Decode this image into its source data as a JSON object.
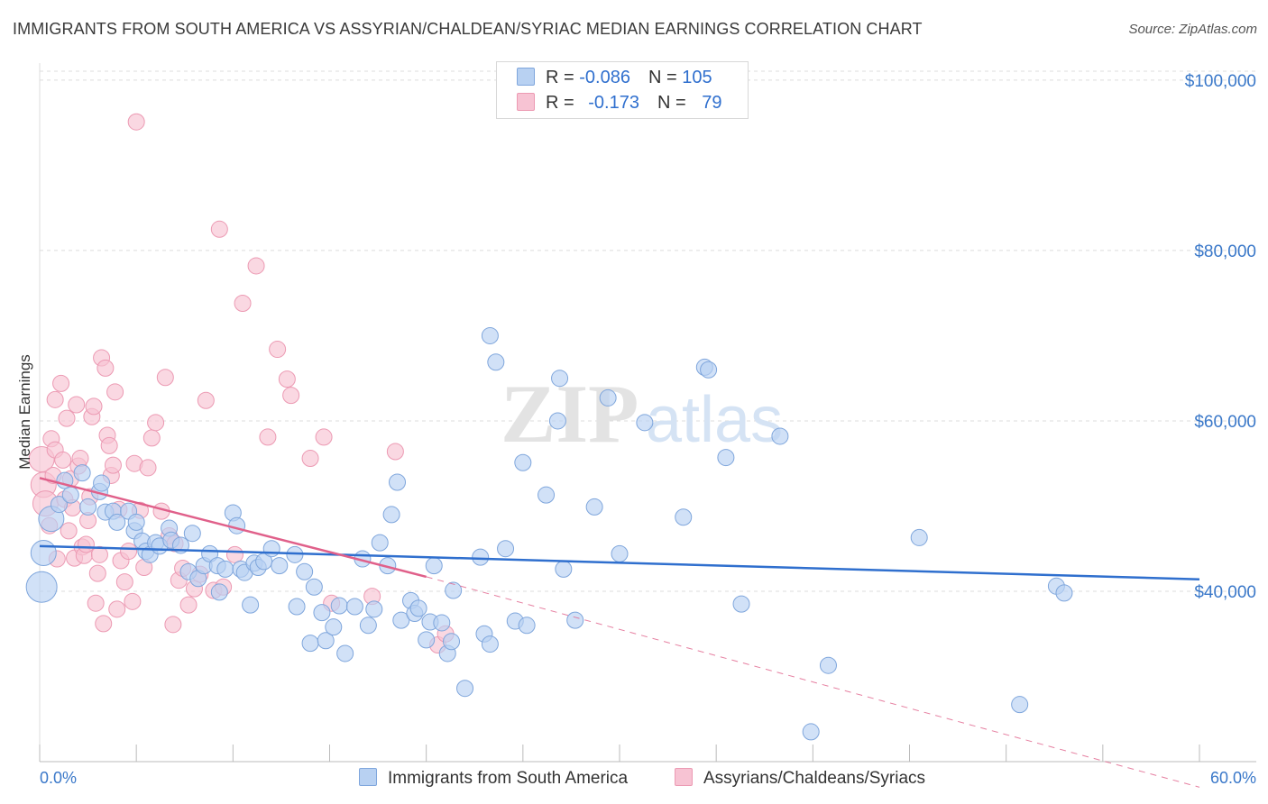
{
  "title": "IMMIGRANTS FROM SOUTH AMERICA VS ASSYRIAN/CHALDEAN/SYRIAC MEDIAN EARNINGS CORRELATION CHART",
  "source": "Source: ZipAtlas.com",
  "watermark": {
    "zip": "ZIP",
    "atlas": "atlas"
  },
  "legend": {
    "series1": {
      "r_label": "R = ",
      "r_value": "-0.086",
      "n_label": "N = ",
      "n_value": "105"
    },
    "series2": {
      "r_label": "R = ",
      "r_value": "-0.173",
      "n_label": "N = ",
      "n_value": "79"
    }
  },
  "bottom_legend": {
    "series1": "Immigrants from South America",
    "series2": "Assyrians/Chaldeans/Syriacs"
  },
  "colors": {
    "blue_fill": "#b8d1f2",
    "blue_stroke": "#7fa6dc",
    "blue_line": "#2f6fce",
    "pink_fill": "#f7c3d3",
    "pink_stroke": "#ec9ab3",
    "pink_line": "#e0608a",
    "axis_text": "#3a78c9",
    "grid": "#dcdcdc"
  },
  "chart_data": {
    "type": "scatter",
    "title": "IMMIGRANTS FROM SOUTH AMERICA VS ASSYRIAN/CHALDEAN/SYRIAC MEDIAN EARNINGS CORRELATION CHART",
    "xlabel": "",
    "ylabel": "Median Earnings",
    "xlim": [
      0,
      60
    ],
    "ylim": [
      20000,
      102000
    ],
    "x_tick_labels": [
      "0.0%",
      "60.0%"
    ],
    "y_ticks": [
      40000,
      60000,
      80000,
      100000
    ],
    "y_tick_labels": [
      "$40,000",
      "$60,000",
      "$80,000",
      "$100,000"
    ],
    "grid": true,
    "legend_placement": "top-center",
    "series": [
      {
        "name": "Immigrants from South America",
        "R": -0.086,
        "N": 105,
        "trend": {
          "x0": 0,
          "y0": 45300,
          "x1": 60,
          "y1": 41400
        },
        "points": [
          [
            0.1,
            40500,
            3
          ],
          [
            0.2,
            44500,
            2
          ],
          [
            0.6,
            48500,
            2
          ],
          [
            1.0,
            50200,
            1
          ],
          [
            1.3,
            53000,
            1
          ],
          [
            1.6,
            51300,
            1
          ],
          [
            2.2,
            53900,
            1
          ],
          [
            2.5,
            49900,
            1
          ],
          [
            3.1,
            51700,
            1
          ],
          [
            3.2,
            52700,
            1
          ],
          [
            3.4,
            49300,
            1
          ],
          [
            3.8,
            49400,
            1
          ],
          [
            4.0,
            48100,
            1
          ],
          [
            4.6,
            49400,
            1
          ],
          [
            4.9,
            47100,
            1
          ],
          [
            5.0,
            48100,
            1
          ],
          [
            5.3,
            45900,
            1
          ],
          [
            5.5,
            44700,
            1
          ],
          [
            5.7,
            44300,
            1
          ],
          [
            6.0,
            45700,
            1
          ],
          [
            6.2,
            45300,
            1
          ],
          [
            6.7,
            47400,
            1
          ],
          [
            6.8,
            46000,
            1
          ],
          [
            7.3,
            45400,
            1
          ],
          [
            7.7,
            42300,
            1
          ],
          [
            7.9,
            46800,
            1
          ],
          [
            8.2,
            41500,
            1
          ],
          [
            8.5,
            43000,
            1
          ],
          [
            8.8,
            44400,
            1
          ],
          [
            9.2,
            43000,
            1
          ],
          [
            9.3,
            39900,
            1
          ],
          [
            9.6,
            42600,
            1
          ],
          [
            10.0,
            49200,
            1
          ],
          [
            10.2,
            47700,
            1
          ],
          [
            10.4,
            42600,
            1
          ],
          [
            10.6,
            42200,
            1
          ],
          [
            10.9,
            38400,
            1
          ],
          [
            11.1,
            43300,
            1
          ],
          [
            11.3,
            42800,
            1
          ],
          [
            11.6,
            43500,
            1
          ],
          [
            12.0,
            45000,
            1
          ],
          [
            12.4,
            43000,
            1
          ],
          [
            13.2,
            44300,
            1
          ],
          [
            13.3,
            38200,
            1
          ],
          [
            13.7,
            42300,
            1
          ],
          [
            14.0,
            33900,
            1
          ],
          [
            14.2,
            40500,
            1
          ],
          [
            14.6,
            37500,
            1
          ],
          [
            14.8,
            34200,
            1
          ],
          [
            15.2,
            35800,
            1
          ],
          [
            15.5,
            38300,
            1
          ],
          [
            15.8,
            32700,
            1
          ],
          [
            16.3,
            38200,
            1
          ],
          [
            16.7,
            43800,
            1
          ],
          [
            17.0,
            36000,
            1
          ],
          [
            17.3,
            37900,
            1
          ],
          [
            17.6,
            45700,
            1
          ],
          [
            18.0,
            43000,
            1
          ],
          [
            18.2,
            49000,
            1
          ],
          [
            18.5,
            52800,
            1
          ],
          [
            18.7,
            36600,
            1
          ],
          [
            19.2,
            38900,
            1
          ],
          [
            19.4,
            37400,
            1
          ],
          [
            19.6,
            38000,
            1
          ],
          [
            20.0,
            34300,
            1
          ],
          [
            20.2,
            36400,
            1
          ],
          [
            20.4,
            43000,
            1
          ],
          [
            20.8,
            36300,
            1
          ],
          [
            21.1,
            32700,
            1
          ],
          [
            21.3,
            34100,
            1
          ],
          [
            21.4,
            40100,
            1
          ],
          [
            22.0,
            28600,
            1
          ],
          [
            22.8,
            44000,
            1
          ],
          [
            23.0,
            35000,
            1
          ],
          [
            23.3,
            33800,
            1
          ],
          [
            23.3,
            70000,
            1
          ],
          [
            23.6,
            66900,
            1
          ],
          [
            24.1,
            45000,
            1
          ],
          [
            24.6,
            36500,
            1
          ],
          [
            25.0,
            55100,
            1
          ],
          [
            25.2,
            36000,
            1
          ],
          [
            26.2,
            51300,
            1
          ],
          [
            26.8,
            60000,
            1
          ],
          [
            26.9,
            65000,
            1
          ],
          [
            27.1,
            42600,
            1
          ],
          [
            27.7,
            36600,
            1
          ],
          [
            28.7,
            49900,
            1
          ],
          [
            29.4,
            62700,
            1
          ],
          [
            30.0,
            44400,
            1
          ],
          [
            31.3,
            59800,
            1
          ],
          [
            33.3,
            48700,
            1
          ],
          [
            34.4,
            66300,
            1
          ],
          [
            34.6,
            66000,
            1
          ],
          [
            35.5,
            55700,
            1
          ],
          [
            36.3,
            38500,
            1
          ],
          [
            38.3,
            58200,
            1
          ],
          [
            39.9,
            23500,
            1
          ],
          [
            40.8,
            31300,
            1
          ],
          [
            45.5,
            46300,
            1
          ],
          [
            50.7,
            26700,
            1
          ],
          [
            52.6,
            40600,
            1
          ],
          [
            53.0,
            39800,
            1
          ]
        ]
      },
      {
        "name": "Assyrians/Chaldeans/Syriacs",
        "R": -0.173,
        "N": 79,
        "trend": {
          "x0": 0,
          "y0": 53300,
          "x1": 20,
          "y1": 41700
        },
        "trend_dashed_to": {
          "x": 60,
          "y": 17000
        },
        "points": [
          [
            0.1,
            55500,
            2
          ],
          [
            0.2,
            52500,
            2
          ],
          [
            0.3,
            50300,
            2
          ],
          [
            0.5,
            47700,
            1
          ],
          [
            0.6,
            57900,
            1
          ],
          [
            0.7,
            53600,
            1
          ],
          [
            0.8,
            56600,
            1
          ],
          [
            0.8,
            62500,
            1
          ],
          [
            0.9,
            43800,
            1
          ],
          [
            1.1,
            64400,
            1
          ],
          [
            1.2,
            55400,
            1
          ],
          [
            1.3,
            50800,
            1
          ],
          [
            1.4,
            60300,
            1
          ],
          [
            1.5,
            47100,
            1
          ],
          [
            1.6,
            53200,
            1
          ],
          [
            1.7,
            49800,
            1
          ],
          [
            1.8,
            43900,
            1
          ],
          [
            1.9,
            61900,
            1
          ],
          [
            2.0,
            54700,
            1
          ],
          [
            2.1,
            55600,
            1
          ],
          [
            2.2,
            45200,
            1
          ],
          [
            2.3,
            44200,
            1
          ],
          [
            2.4,
            45500,
            1
          ],
          [
            2.5,
            48300,
            1
          ],
          [
            2.6,
            51100,
            1
          ],
          [
            2.7,
            60500,
            1
          ],
          [
            2.8,
            61700,
            1
          ],
          [
            2.9,
            38600,
            1
          ],
          [
            3.0,
            42100,
            1
          ],
          [
            3.1,
            44300,
            1
          ],
          [
            3.2,
            67400,
            1
          ],
          [
            3.3,
            36200,
            1
          ],
          [
            3.4,
            66200,
            1
          ],
          [
            3.5,
            58300,
            1
          ],
          [
            3.6,
            57100,
            1
          ],
          [
            3.7,
            53600,
            1
          ],
          [
            3.8,
            54800,
            1
          ],
          [
            3.9,
            63400,
            1
          ],
          [
            4.0,
            37900,
            1
          ],
          [
            4.1,
            49600,
            1
          ],
          [
            4.2,
            43600,
            1
          ],
          [
            4.4,
            41100,
            1
          ],
          [
            4.6,
            44700,
            1
          ],
          [
            4.8,
            38800,
            1
          ],
          [
            4.9,
            55000,
            1
          ],
          [
            5.0,
            95100,
            1
          ],
          [
            5.2,
            49500,
            1
          ],
          [
            5.4,
            42800,
            1
          ],
          [
            5.6,
            54500,
            1
          ],
          [
            5.8,
            58000,
            1
          ],
          [
            6.0,
            59800,
            1
          ],
          [
            6.3,
            49400,
            1
          ],
          [
            6.5,
            65100,
            1
          ],
          [
            6.7,
            46500,
            1
          ],
          [
            6.9,
            36100,
            1
          ],
          [
            7.0,
            45600,
            1
          ],
          [
            7.2,
            41300,
            1
          ],
          [
            7.4,
            42700,
            1
          ],
          [
            7.7,
            38400,
            1
          ],
          [
            8.0,
            40300,
            1
          ],
          [
            8.3,
            42000,
            1
          ],
          [
            8.6,
            62400,
            1
          ],
          [
            9.0,
            40100,
            1
          ],
          [
            9.3,
            82500,
            1
          ],
          [
            9.5,
            40500,
            1
          ],
          [
            10.1,
            44300,
            1
          ],
          [
            10.5,
            73800,
            1
          ],
          [
            11.2,
            78200,
            1
          ],
          [
            11.8,
            58100,
            1
          ],
          [
            12.3,
            68400,
            1
          ],
          [
            12.8,
            64900,
            1
          ],
          [
            13.0,
            63000,
            1
          ],
          [
            14.0,
            55600,
            1
          ],
          [
            14.7,
            58100,
            1
          ],
          [
            15.1,
            38600,
            1
          ],
          [
            17.2,
            39400,
            1
          ],
          [
            18.4,
            56400,
            1
          ],
          [
            20.6,
            33700,
            1
          ],
          [
            21.0,
            35000,
            1
          ]
        ]
      }
    ]
  }
}
